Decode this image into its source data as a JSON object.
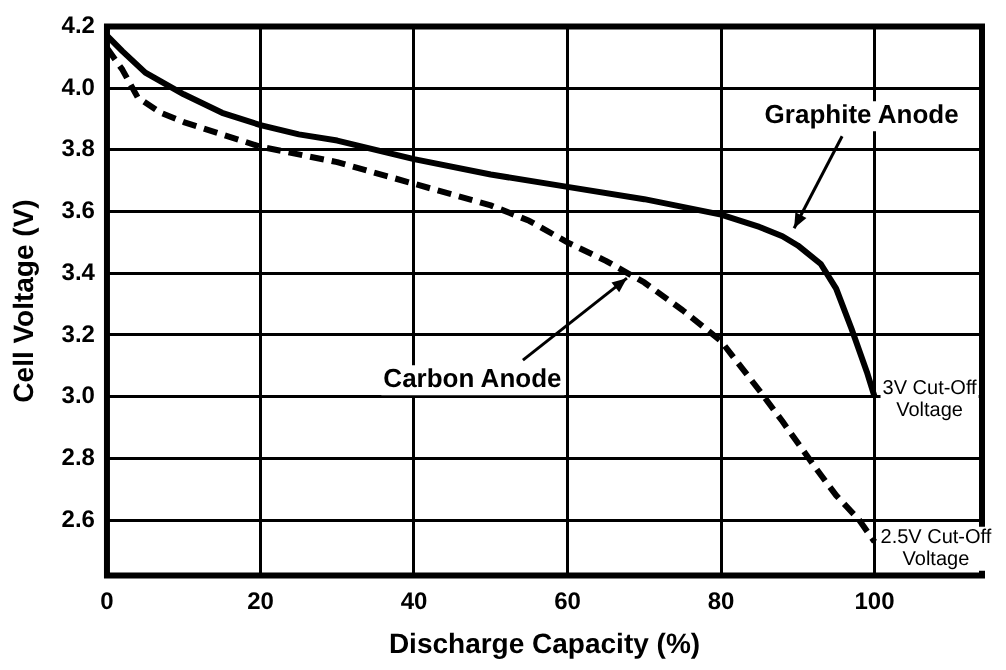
{
  "chart_data": {
    "type": "line",
    "xlabel": "Discharge Capacity (%)",
    "ylabel": "Cell Voltage (V)",
    "xlim": [
      0,
      114
    ],
    "ylim": [
      2.42,
      4.2
    ],
    "xticks": [
      0,
      20,
      40,
      60,
      80,
      100
    ],
    "yticks": [
      2.6,
      2.8,
      {
        "value": 3,
        "label": "3.0"
      },
      3.2,
      3.4,
      3.6,
      3.8,
      {
        "value": 4,
        "label": "4.0"
      },
      4.2
    ],
    "grid": true,
    "legend": false,
    "marker": "none",
    "series": [
      {
        "color": "#000000",
        "line_style": "solid",
        "x": [
          0,
          2,
          5,
          10,
          15,
          20,
          25,
          30,
          40,
          50,
          60,
          70,
          80,
          85,
          88,
          90,
          93,
          95,
          97,
          99,
          100
        ],
        "values": [
          4.17,
          4.12,
          4.05,
          3.98,
          3.92,
          3.88,
          3.85,
          3.83,
          3.77,
          3.72,
          3.68,
          3.64,
          3.59,
          3.55,
          3.52,
          3.49,
          3.43,
          3.35,
          3.22,
          3.08,
          3.0
        ]
      },
      {
        "color": "#000000",
        "line_style": "dashed",
        "x": [
          0,
          2,
          4,
          7,
          10,
          20,
          30,
          40,
          50,
          55,
          60,
          65,
          70,
          75,
          80,
          85,
          88,
          92,
          95,
          98,
          100
        ],
        "values": [
          4.13,
          4.06,
          3.97,
          3.92,
          3.89,
          3.81,
          3.76,
          3.69,
          3.62,
          3.57,
          3.5,
          3.44,
          3.37,
          3.28,
          3.18,
          3.02,
          2.92,
          2.78,
          2.68,
          2.6,
          2.53
        ]
      }
    ],
    "annotations": [
      {
        "text": "Graphite Anode",
        "x": 89,
        "y": 3.52
      },
      {
        "text": "Carbon Anode",
        "x": 68,
        "y": 3.41
      },
      {
        "text": "3V Cut-Off\nVoltage",
        "x": 100,
        "y": 3.0
      },
      {
        "text": "2.5V Cut-Off\nVoltage",
        "x": 100,
        "y": 2.53
      }
    ]
  }
}
